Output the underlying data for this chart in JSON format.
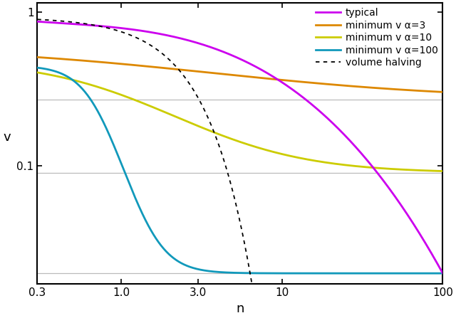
{
  "title": "",
  "xlabel": "n",
  "ylabel": "v",
  "x_ticks": [
    0.3,
    1.0,
    3.0,
    10.0,
    100.0
  ],
  "x_ticklabels": [
    "0.3",
    "1.0",
    "3.0",
    "10",
    "100"
  ],
  "y_ticks": [
    0.1,
    1.0
  ],
  "y_ticklabels": [
    "0.1",
    "1"
  ],
  "hlines": [
    0.27,
    0.09,
    0.02
  ],
  "hlines_color": "#bbbbbb",
  "line_typical_color": "#cc00ee",
  "line_alpha3_color": "#dd8800",
  "line_alpha10_color": "#cccc00",
  "line_alpha100_color": "#1199bb",
  "line_volume_color": "#000000",
  "legend_labels": [
    "typical",
    "minimum v α=3",
    "minimum v α=10",
    "minimum v α=100",
    "volume halving"
  ],
  "background_color": "#ffffff",
  "n_points": 800,
  "ylim": [
    0.017,
    1.15
  ],
  "xlim": [
    0.3,
    100
  ]
}
